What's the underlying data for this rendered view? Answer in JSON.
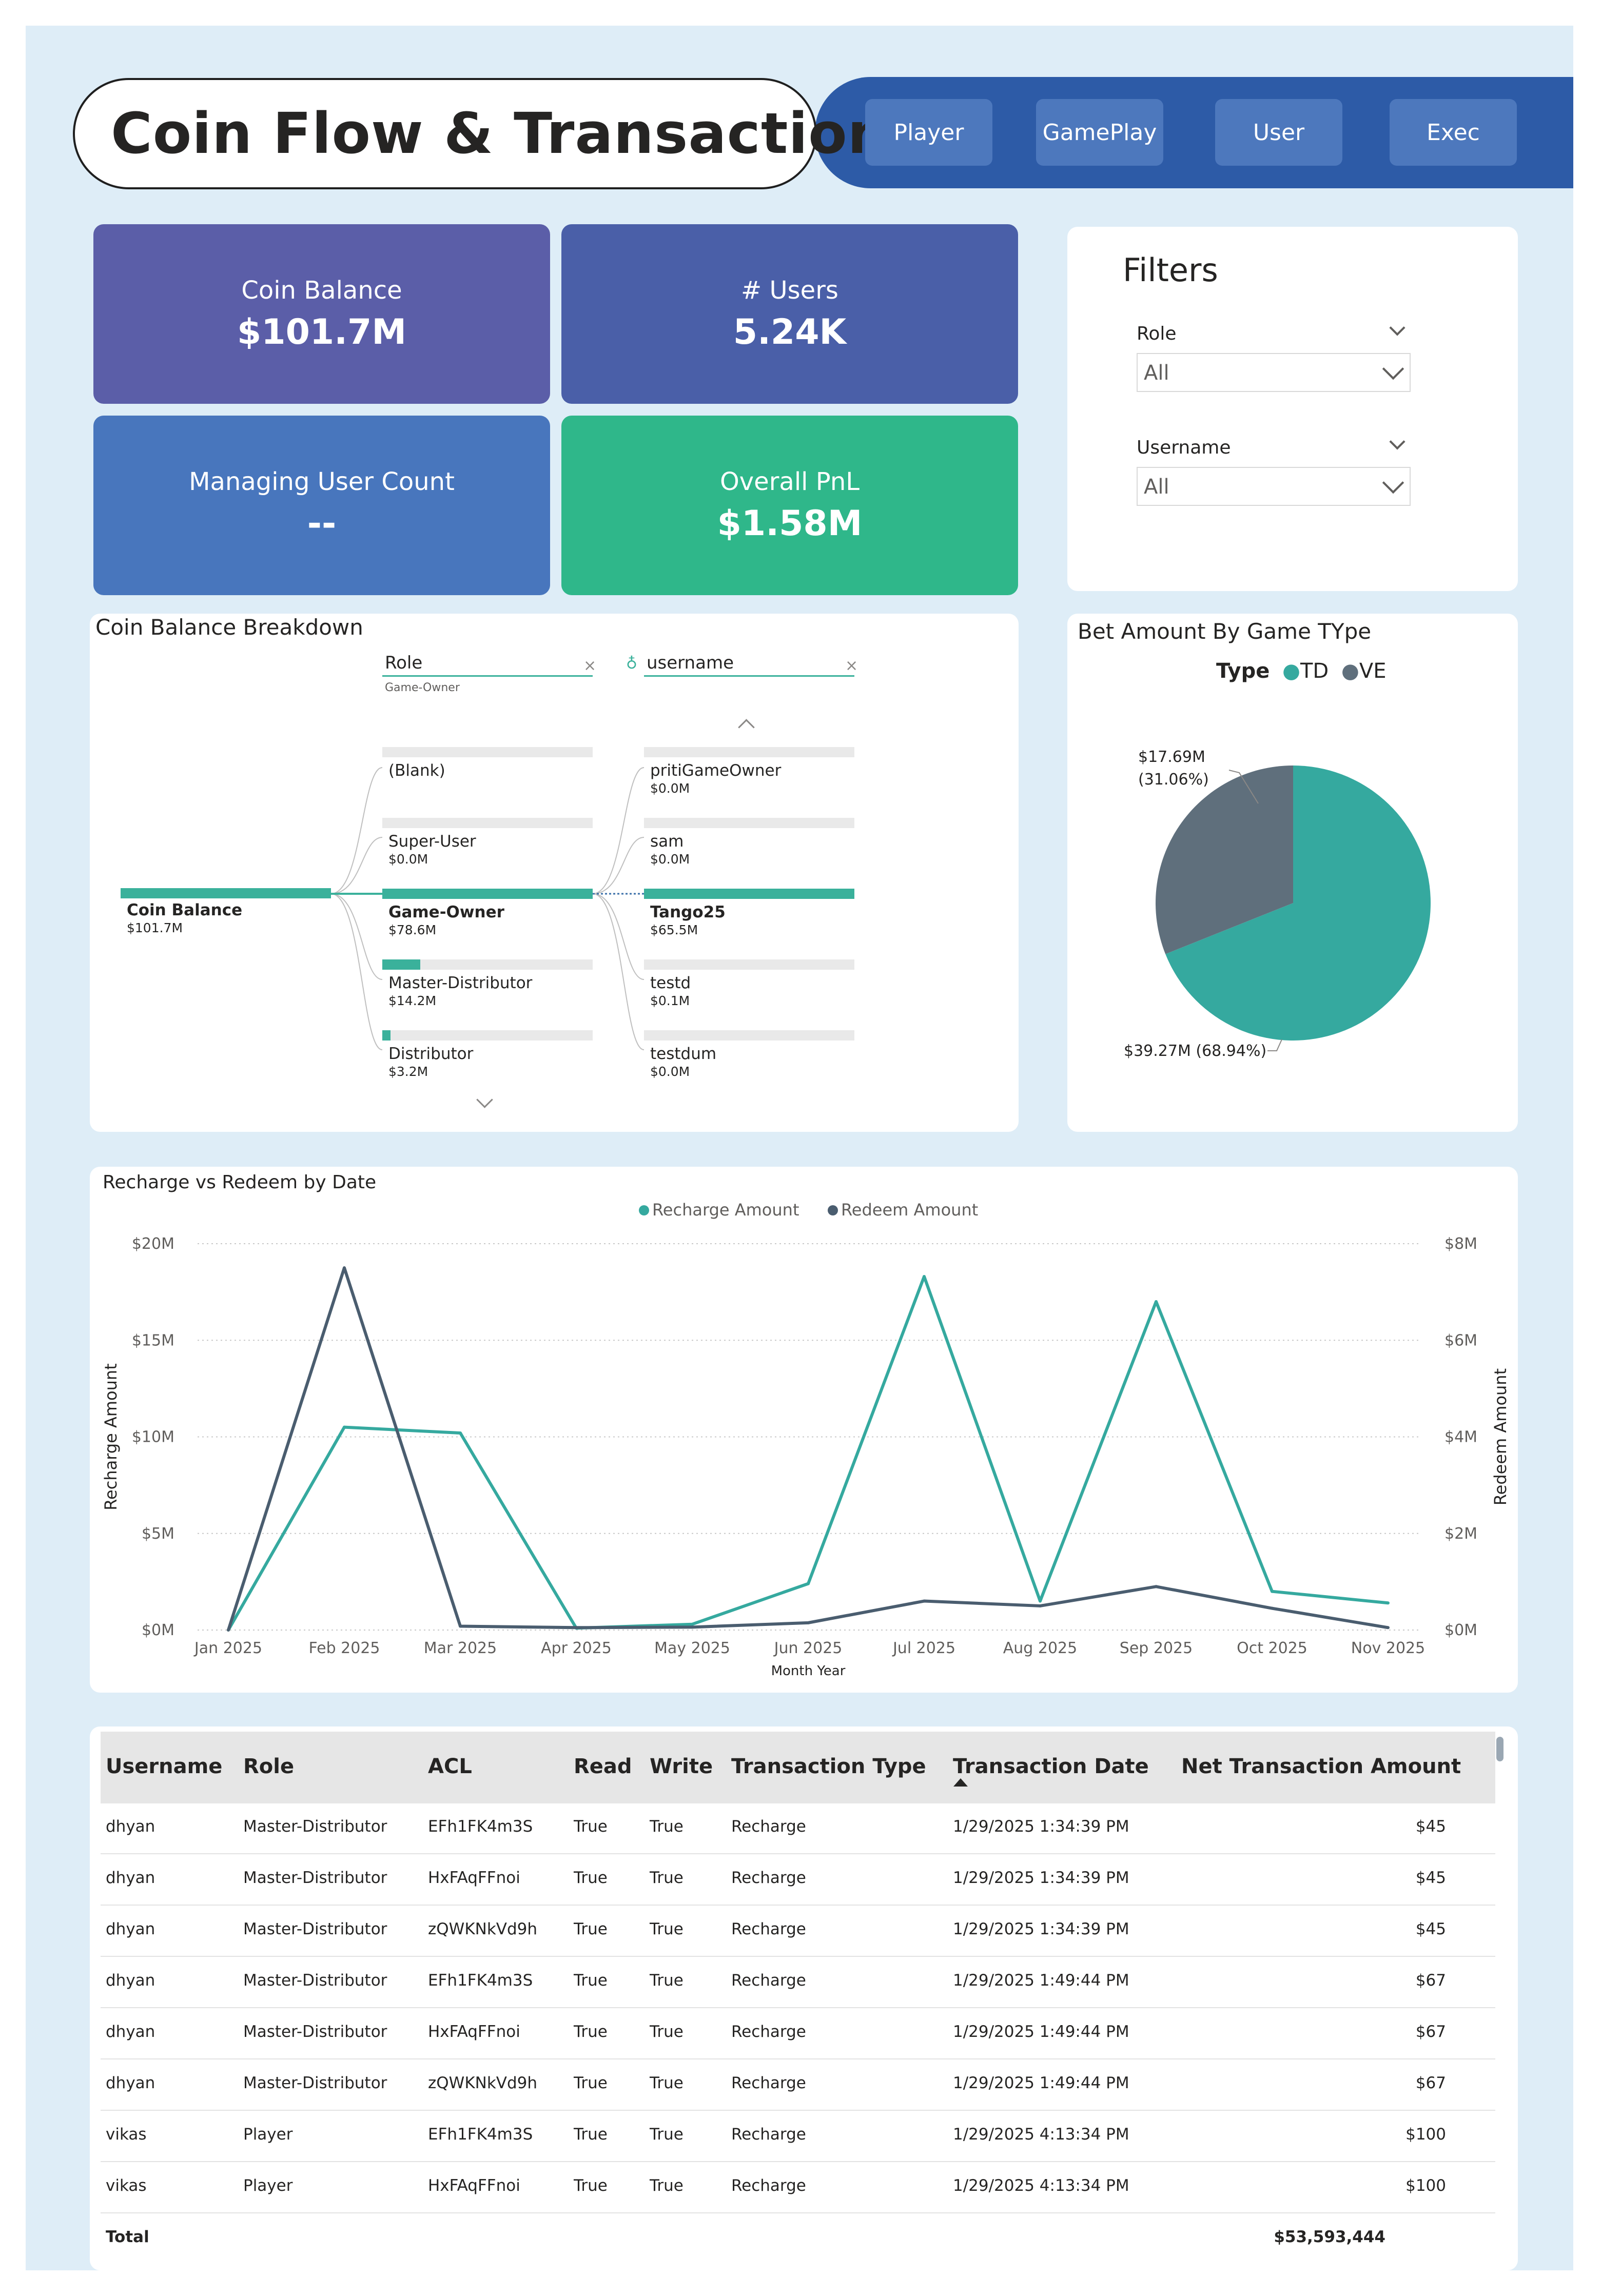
{
  "header": {
    "title": "Coin Flow & Transaction",
    "nav": [
      {
        "label": "Player"
      },
      {
        "label": "GamePlay"
      },
      {
        "label": "User"
      },
      {
        "label": "Exec"
      }
    ]
  },
  "kpis": {
    "coin_balance": {
      "label": "Coin Balance",
      "value": "$101.7M",
      "color": "#5b5ea8"
    },
    "users": {
      "label": "# Users",
      "value": "5.24K",
      "color": "#4a5fa8"
    },
    "managing_user_count": {
      "label": "Managing User Count",
      "value": "--",
      "color": "#4876bd"
    },
    "overall_pnl": {
      "label": "Overall PnL",
      "value": "$1.58M",
      "color": "#2fb78a"
    }
  },
  "filters": {
    "title": "Filters",
    "role": {
      "label": "Role",
      "value": "All"
    },
    "username": {
      "label": "Username",
      "value": "All"
    }
  },
  "breakdown": {
    "title": "Coin Balance Breakdown",
    "root": {
      "label": "Coin Balance",
      "value": "$101.7M"
    },
    "level1_header": "Role",
    "level1_selected": "Game-Owner",
    "level2_header": "username",
    "roles": [
      {
        "label": "(Blank)",
        "value": "",
        "fraction": 0
      },
      {
        "label": "Super-User",
        "value": "$0.0M",
        "fraction": 0
      },
      {
        "label": "Game-Owner",
        "value": "$78.6M",
        "fraction": 1.0
      },
      {
        "label": "Master-Distributor",
        "value": "$14.2M",
        "fraction": 0.18
      },
      {
        "label": "Distributor",
        "value": "$3.2M",
        "fraction": 0.04
      }
    ],
    "users": [
      {
        "label": "pritiGameOwner",
        "value": "$0.0M",
        "fraction": 0
      },
      {
        "label": "sam",
        "value": "$0.0M",
        "fraction": 0
      },
      {
        "label": "Tango25",
        "value": "$65.5M",
        "fraction": 1.0
      },
      {
        "label": "testd",
        "value": "$0.1M",
        "fraction": 0
      },
      {
        "label": "testdum",
        "value": "$0.0M",
        "fraction": 0
      }
    ]
  },
  "pie": {
    "title": "Bet Amount By Game TYpe",
    "legend_title": "Type",
    "slices": [
      {
        "name": "TD",
        "value": 39.27,
        "label": "$39.27M (68.94%)",
        "color": "#35a99f"
      },
      {
        "name": "VE",
        "value": 17.69,
        "label_line1": "$17.69M",
        "label_line2": "(31.06%)",
        "color": "#5f6f7c"
      }
    ]
  },
  "chart_data": {
    "type": "line",
    "title": "Recharge vs Redeem by Date",
    "xlabel": "Month Year",
    "ylabel": "Recharge Amount",
    "y2label": "Redeem Amount",
    "categories": [
      "Jan 2025",
      "Feb 2025",
      "Mar 2025",
      "Apr 2025",
      "May 2025",
      "Jun 2025",
      "Jul 2025",
      "Aug 2025",
      "Sep 2025",
      "Oct 2025",
      "Nov 2025"
    ],
    "series": [
      {
        "name": "Recharge Amount",
        "axis": "left",
        "color": "#35a99f",
        "values": [
          0,
          10.5,
          10.2,
          0.1,
          0.3,
          2.4,
          18.3,
          1.5,
          17.0,
          2.0,
          1.4
        ]
      },
      {
        "name": "Redeem Amount",
        "axis": "right",
        "color": "#4a5d6f",
        "values": [
          0,
          7.5,
          0.08,
          0.05,
          0.06,
          0.15,
          0.6,
          0.5,
          0.9,
          0.45,
          0.05
        ]
      }
    ],
    "ylim": [
      0,
      20
    ],
    "y2lim": [
      0,
      8
    ],
    "yticks": [
      "$0M",
      "$5M",
      "$10M",
      "$15M",
      "$20M"
    ],
    "y2ticks": [
      "$0M",
      "$2M",
      "$4M",
      "$6M",
      "$8M"
    ],
    "legend": "top-center",
    "grid": true
  },
  "table": {
    "columns": [
      "Username",
      "Role",
      "ACL",
      "Read",
      "Write",
      "Transaction Type",
      "Transaction Date",
      "Net Transaction Amount"
    ],
    "rows": [
      [
        "dhyan",
        "Master-Distributor",
        "EFh1FK4m3S",
        "True",
        "True",
        "Recharge",
        "1/29/2025 1:34:39 PM",
        "$45"
      ],
      [
        "dhyan",
        "Master-Distributor",
        "HxFAqFFnoi",
        "True",
        "True",
        "Recharge",
        "1/29/2025 1:34:39 PM",
        "$45"
      ],
      [
        "dhyan",
        "Master-Distributor",
        "zQWKNkVd9h",
        "True",
        "True",
        "Recharge",
        "1/29/2025 1:34:39 PM",
        "$45"
      ],
      [
        "dhyan",
        "Master-Distributor",
        "EFh1FK4m3S",
        "True",
        "True",
        "Recharge",
        "1/29/2025 1:49:44 PM",
        "$67"
      ],
      [
        "dhyan",
        "Master-Distributor",
        "HxFAqFFnoi",
        "True",
        "True",
        "Recharge",
        "1/29/2025 1:49:44 PM",
        "$67"
      ],
      [
        "dhyan",
        "Master-Distributor",
        "zQWKNkVd9h",
        "True",
        "True",
        "Recharge",
        "1/29/2025 1:49:44 PM",
        "$67"
      ],
      [
        "vikas",
        "Player",
        "EFh1FK4m3S",
        "True",
        "True",
        "Recharge",
        "1/29/2025 4:13:34 PM",
        "$100"
      ],
      [
        "vikas",
        "Player",
        "HxFAqFFnoi",
        "True",
        "True",
        "Recharge",
        "1/29/2025 4:13:34 PM",
        "$100"
      ]
    ],
    "total_label": "Total",
    "total_value": "$53,593,444"
  }
}
